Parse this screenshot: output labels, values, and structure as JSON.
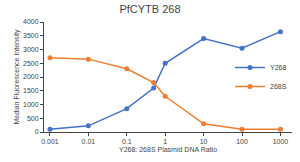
{
  "chart_data": {
    "type": "line",
    "title": "PfCYTB 268",
    "xlabel": "Y268: 268S Plasmid DNA Ratio",
    "ylabel": "Median Fluorescence Intensity",
    "x": [
      0.001,
      0.01,
      0.1,
      0.5,
      1,
      10,
      100,
      1000
    ],
    "series": [
      {
        "name": "Y268",
        "color": "#4472C4",
        "values": [
          100,
          225,
          850,
          1600,
          2500,
          3400,
          3050,
          3650
        ]
      },
      {
        "name": "268S",
        "color": "#ED7D31",
        "values": [
          2700,
          2650,
          2300,
          1800,
          1300,
          300,
          100,
          100
        ]
      }
    ],
    "marker": "circle",
    "log": "x",
    "xlim": [
      0.0007,
      2000
    ],
    "xticks": [
      0.001,
      0.01,
      0.1,
      1,
      10,
      100,
      1000
    ],
    "ylim": [
      0,
      4000
    ],
    "yticks": [
      0,
      500,
      1000,
      1500,
      2000,
      2500,
      3000,
      3500,
      4000
    ],
    "grid": false,
    "legend": "right"
  }
}
